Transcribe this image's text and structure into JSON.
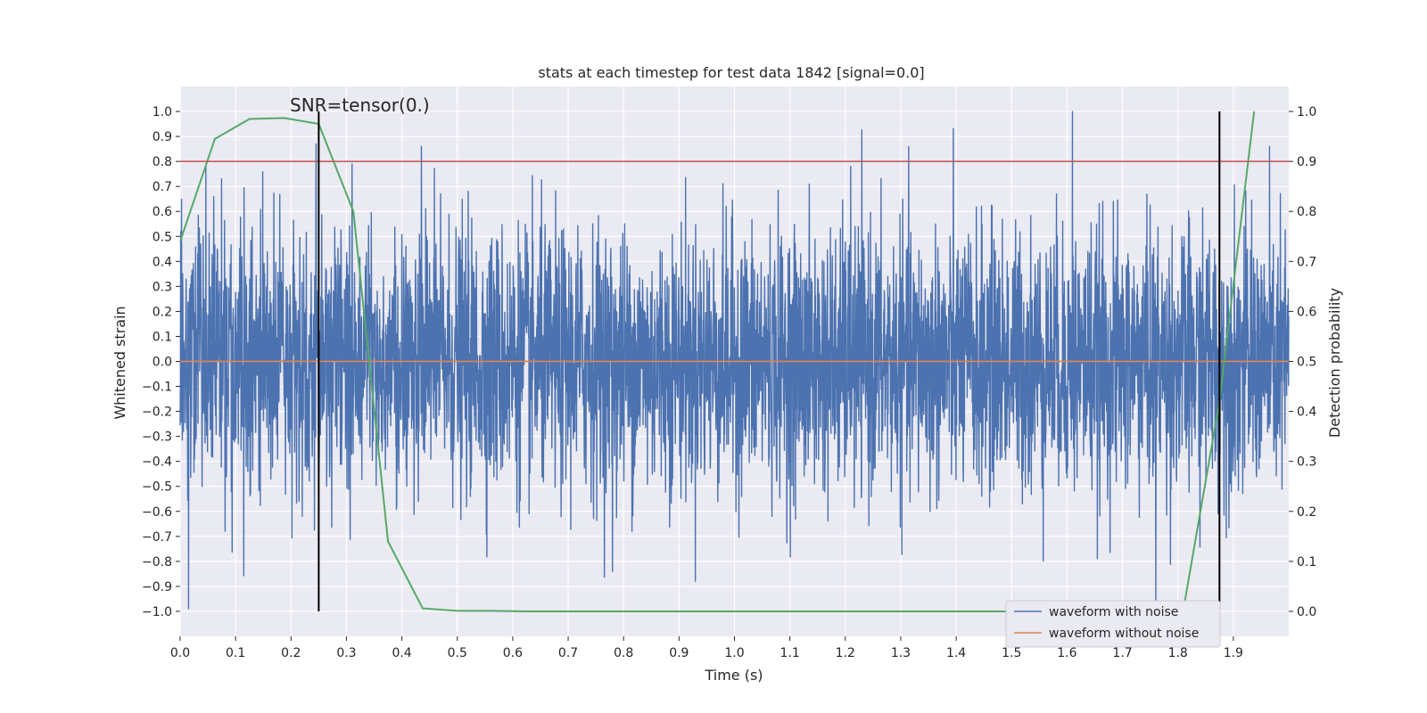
{
  "chart_data": {
    "type": "line",
    "title": "stats at each timestep for test data 1842 [signal=0.0]",
    "xlabel": "Time (s)",
    "ylabel": "Whitened strain",
    "y2label": "Detection probability",
    "annotation": "SNR=tensor(0.)",
    "xlim": [
      0.0,
      2.0
    ],
    "ylim": [
      -1.1,
      1.1
    ],
    "y2lim": [
      -0.05,
      1.05
    ],
    "x_ticks": [
      0.0,
      0.1,
      0.2,
      0.3,
      0.4,
      0.5,
      0.6,
      0.7,
      0.8,
      0.9,
      1.0,
      1.1,
      1.2,
      1.3,
      1.4,
      1.5,
      1.6,
      1.7,
      1.8,
      1.9
    ],
    "x_tick_labels": [
      "0.0",
      "0.1",
      "0.2",
      "0.3",
      "0.4",
      "0.5",
      "0.6",
      "0.7",
      "0.8",
      "0.9",
      "1.0",
      "1.1",
      "1.2",
      "1.3",
      "1.4",
      "1.5",
      "1.6",
      "1.7",
      "1.8",
      "1.9"
    ],
    "y_ticks": [
      1.0,
      0.9,
      0.8,
      0.7,
      0.6,
      0.5,
      0.4,
      0.3,
      0.2,
      0.1,
      0.0,
      -0.1,
      -0.2,
      -0.3,
      -0.4,
      -0.5,
      -0.6,
      -0.7,
      -0.8,
      -0.9,
      -1.0
    ],
    "y_tick_labels": [
      "1.0",
      "0.9",
      "0.8",
      "0.7",
      "0.6",
      "0.5",
      "0.4",
      "0.3",
      "0.2",
      "0.1",
      "0.0",
      "−0.1",
      "−0.2",
      "−0.3",
      "−0.4",
      "−0.5",
      "−0.6",
      "−0.7",
      "−0.8",
      "−0.9",
      "−1.0"
    ],
    "y2_ticks": [
      1.0,
      0.9,
      0.8,
      0.7,
      0.6,
      0.5,
      0.4,
      0.3,
      0.2,
      0.1,
      0.0
    ],
    "y2_tick_labels": [
      "1.0",
      "0.9",
      "0.8",
      "0.7",
      "0.6",
      "0.5",
      "0.4",
      "0.3",
      "0.2",
      "0.1",
      "0.0"
    ],
    "grid": true,
    "legend_position": "lower-right",
    "series": [
      {
        "name": "waveform with noise",
        "axis": "left",
        "color": "#4c72b0",
        "style": "noise",
        "points": 4096,
        "amplitude_range": [
          -0.99,
          1.0
        ],
        "notable_peaks": [
          [
            0.245,
            0.87
          ],
          [
            0.31,
            0.79
          ],
          [
            0.435,
            0.86
          ],
          [
            1.21,
            0.78
          ],
          [
            1.61,
            1.0
          ],
          [
            0.015,
            -0.99
          ],
          [
            0.78,
            -0.84
          ],
          [
            1.76,
            -0.99
          ]
        ]
      },
      {
        "name": "waveform without noise",
        "axis": "left",
        "color": "#dd8452",
        "x": [
          0.0,
          2.0
        ],
        "y": [
          0.0,
          0.0
        ]
      },
      {
        "name": "",
        "axis": "right",
        "color": "#55a868",
        "x": [
          0.0,
          0.0625,
          0.125,
          0.1875,
          0.25,
          0.3125,
          0.375,
          0.4375,
          0.5,
          0.5625,
          0.625,
          1.0,
          1.5,
          1.75,
          1.8125,
          1.875,
          1.9375
        ],
        "y": [
          0.74,
          0.945,
          0.985,
          0.987,
          0.975,
          0.8,
          0.14,
          0.006,
          0.001,
          0.001,
          0.0,
          0.0,
          0.0,
          0.001,
          0.02,
          0.42,
          1.0
        ]
      }
    ],
    "hlines": [
      {
        "axis": "right",
        "value": 0.9,
        "color": "#c44e52"
      }
    ],
    "vlines": [
      {
        "x": 0.25,
        "ymin": -1.0,
        "ymax": 1.0,
        "color": "#000000"
      },
      {
        "x": 1.875,
        "ymin": -1.0,
        "ymax": 1.0,
        "color": "#000000"
      }
    ],
    "colors": {
      "background": "#eaeaf2",
      "grid": "#ffffff"
    }
  }
}
